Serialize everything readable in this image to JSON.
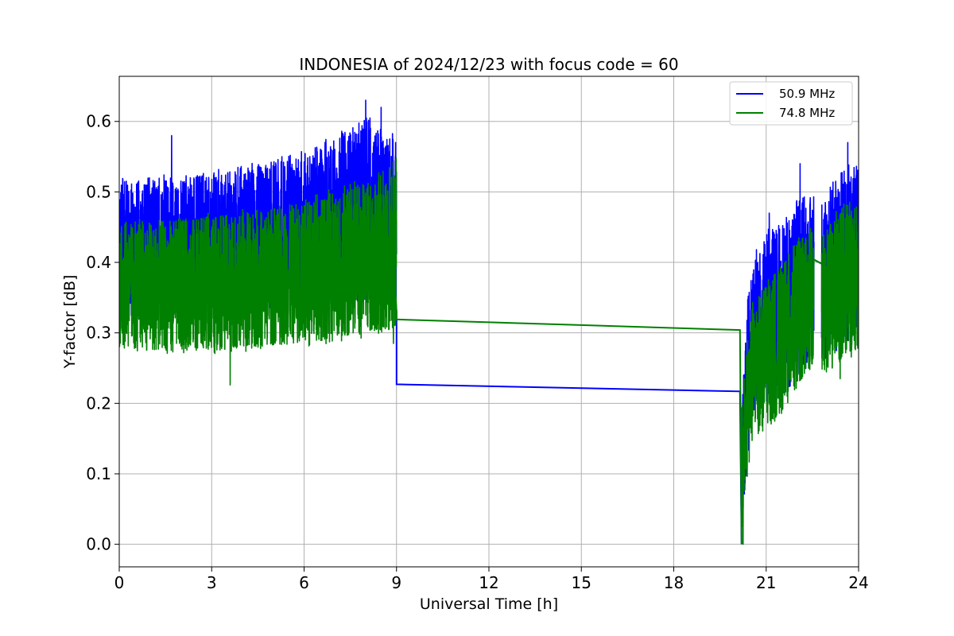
{
  "chart_data": {
    "type": "line",
    "title": "INDONESIA of 2024/12/23 with focus code = 60",
    "xlabel": "Universal Time [h]",
    "ylabel": "Y-factor [dB]",
    "xlim": [
      0,
      24
    ],
    "ylim": [
      -0.032,
      0.664
    ],
    "xticks": [
      0,
      3,
      6,
      9,
      12,
      15,
      18,
      21,
      24
    ],
    "yticks": [
      0.0,
      0.1,
      0.2,
      0.3,
      0.4,
      0.5,
      0.6
    ],
    "xtick_labels": [
      "0",
      "3",
      "6",
      "9",
      "12",
      "15",
      "18",
      "21",
      "24"
    ],
    "ytick_labels": [
      "0.0",
      "0.1",
      "0.2",
      "0.3",
      "0.4",
      "0.5",
      "0.6"
    ],
    "grid": true,
    "legend_position": "upper right",
    "series": [
      {
        "name": "50.9 MHz",
        "color": "#0000ff",
        "segments": [
          {
            "x_start": 0.0,
            "x_end": 9.0,
            "band_low": [
              [
                0.0,
                0.31
              ],
              [
                3.0,
                0.32
              ],
              [
                6.0,
                0.33
              ],
              [
                9.0,
                0.34
              ]
            ],
            "band_high": [
              [
                0.0,
                0.52
              ],
              [
                3.0,
                0.53
              ],
              [
                6.0,
                0.56
              ],
              [
                8.0,
                0.61
              ],
              [
                9.0,
                0.58
              ]
            ],
            "peaks": [
              [
                1.7,
                0.58
              ],
              [
                8.0,
                0.63
              ],
              [
                8.5,
                0.62
              ]
            ]
          },
          {
            "x_start": 20.2,
            "x_end": 22.55,
            "band_low": [
              [
                20.2,
                0.0
              ],
              [
                20.3,
                0.07
              ],
              [
                20.6,
                0.19
              ],
              [
                21.5,
                0.2
              ],
              [
                22.5,
                0.26
              ]
            ],
            "band_high": [
              [
                20.2,
                0.2
              ],
              [
                20.4,
                0.35
              ],
              [
                20.6,
                0.42
              ],
              [
                21.0,
                0.45
              ],
              [
                21.5,
                0.46
              ],
              [
                22.0,
                0.5
              ],
              [
                22.5,
                0.5
              ]
            ],
            "peaks": [
              [
                21.1,
                0.47
              ],
              [
                22.1,
                0.54
              ]
            ]
          },
          {
            "x_start": 22.8,
            "x_end": 24.0,
            "band_low": [
              [
                22.8,
                0.26
              ],
              [
                23.5,
                0.28
              ],
              [
                24.0,
                0.29
              ]
            ],
            "band_high": [
              [
                22.8,
                0.5
              ],
              [
                23.5,
                0.54
              ],
              [
                24.0,
                0.54
              ]
            ],
            "peaks": [
              [
                23.65,
                0.57
              ]
            ]
          }
        ],
        "connectors": [
          [
            [
              8.95,
              0.36
            ],
            [
              9.0,
              0.33
            ],
            [
              9.0,
              0.227
            ],
            [
              20.15,
              0.217
            ],
            [
              20.2,
              0.0
            ]
          ],
          [
            [
              22.55,
              0.404
            ],
            [
              22.8,
              0.398
            ]
          ]
        ]
      },
      {
        "name": "74.8 MHz",
        "color": "#008000",
        "segments": [
          {
            "x_start": 0.0,
            "x_end": 9.0,
            "band_low": [
              [
                0.0,
                0.27
              ],
              [
                3.0,
                0.27
              ],
              [
                6.0,
                0.28
              ],
              [
                9.0,
                0.3
              ]
            ],
            "band_high": [
              [
                0.0,
                0.46
              ],
              [
                3.0,
                0.47
              ],
              [
                6.0,
                0.49
              ],
              [
                8.5,
                0.53
              ],
              [
                9.0,
                0.56
              ]
            ],
            "peaks": [
              [
                3.6,
                0.226
              ],
              [
                8.9,
                0.285
              ]
            ]
          },
          {
            "x_start": 20.2,
            "x_end": 22.55,
            "band_low": [
              [
                20.2,
                0.0
              ],
              [
                20.3,
                0.06
              ],
              [
                20.6,
                0.15
              ],
              [
                21.5,
                0.18
              ],
              [
                22.5,
                0.25
              ]
            ],
            "band_high": [
              [
                20.2,
                0.2
              ],
              [
                20.5,
                0.34
              ],
              [
                21.0,
                0.38
              ],
              [
                21.5,
                0.4
              ],
              [
                22.0,
                0.44
              ],
              [
                22.5,
                0.45
              ]
            ],
            "peaks": [
              [
                20.25,
                0.0
              ]
            ]
          },
          {
            "x_start": 22.8,
            "x_end": 24.0,
            "band_low": [
              [
                22.8,
                0.24
              ],
              [
                23.5,
                0.26
              ],
              [
                24.0,
                0.27
              ]
            ],
            "band_high": [
              [
                22.8,
                0.44
              ],
              [
                23.5,
                0.49
              ],
              [
                24.0,
                0.48
              ]
            ],
            "peaks": [
              [
                23.4,
                0.235
              ]
            ]
          }
        ],
        "connectors": [
          [
            [
              8.95,
              0.37
            ],
            [
              9.0,
              0.33
            ],
            [
              9.0,
              0.319
            ],
            [
              20.15,
              0.304
            ],
            [
              20.2,
              0.0
            ]
          ],
          [
            [
              22.55,
              0.404
            ],
            [
              22.8,
              0.398
            ]
          ]
        ]
      }
    ]
  }
}
